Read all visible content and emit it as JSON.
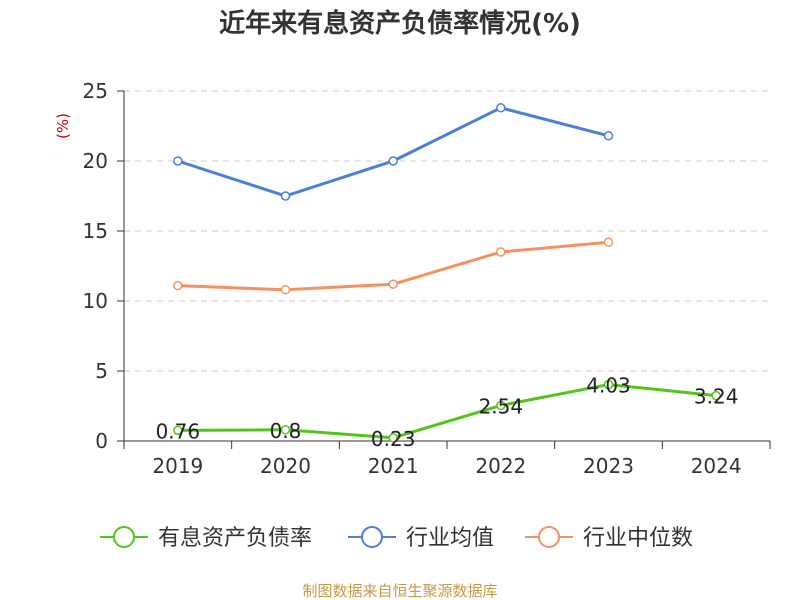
{
  "chart_data": {
    "type": "line",
    "title": "近年来有息资产负债率情况(%)",
    "ylabel": "(%)",
    "xlabel": "",
    "categories": [
      "2019",
      "2020",
      "2021",
      "2022",
      "2023",
      "2024"
    ],
    "yticks": [
      "0",
      "5",
      "10",
      "15",
      "20",
      "25"
    ],
    "ylim": [
      0,
      25
    ],
    "grid": true,
    "legend_position": "bottom",
    "series": [
      {
        "name": "有息资产负债率",
        "color": "#52c41a",
        "values": [
          0.76,
          0.8,
          0.23,
          2.54,
          4.03,
          3.24
        ],
        "value_labels": [
          "0.76",
          "0.8",
          "0.23",
          "2.54",
          "4.03",
          "3.24"
        ]
      },
      {
        "name": "行业均值",
        "color": "#4a7fdc",
        "values": [
          20.0,
          17.5,
          20.0,
          23.8,
          21.8,
          null
        ]
      },
      {
        "name": "行业中位数",
        "color": "#f5915f",
        "values": [
          11.1,
          10.8,
          11.2,
          13.5,
          14.2,
          null
        ]
      }
    ],
    "source": "制图数据来自恒生聚源数据库",
    "colors": {
      "ylabel": "#cc0000",
      "source": "#c59a4b",
      "grid": "#c8c8c8",
      "axis": "#333333"
    }
  }
}
